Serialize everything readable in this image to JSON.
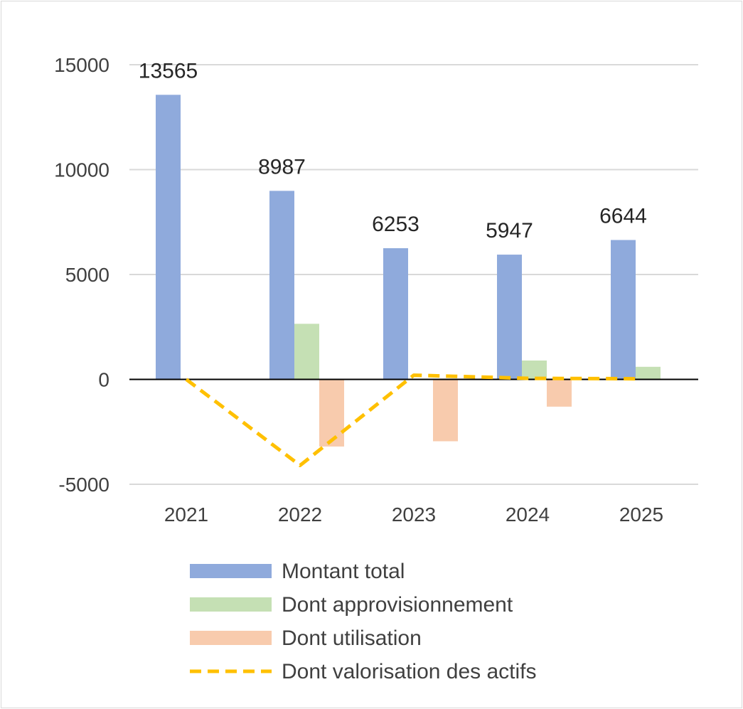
{
  "chart_data": {
    "type": "bar",
    "title": "",
    "xlabel": "",
    "ylabel": "",
    "categories": [
      "2021",
      "2022",
      "2023",
      "2024",
      "2025"
    ],
    "ylim": [
      -5000,
      15000
    ],
    "yticks": [
      15000,
      10000,
      5000,
      0,
      -5000
    ],
    "y_tick_labels": [
      "15000",
      "10000",
      "5000",
      "0",
      "-5000"
    ],
    "gridlines": true,
    "legend_position": "bottom",
    "series": [
      {
        "name": "Montant total",
        "type": "bar",
        "color": "#8faadc",
        "values": [
          13565,
          8987,
          6253,
          5947,
          6644
        ],
        "data_labels": [
          "13565",
          "8987",
          "6253",
          "5947",
          "6644"
        ]
      },
      {
        "name": "Dont approvisionnement",
        "type": "bar",
        "color": "#c5e0b4",
        "values": [
          0,
          2650,
          0,
          900,
          600
        ]
      },
      {
        "name": "Dont utilisation",
        "type": "bar",
        "color": "#f8cbad",
        "values": [
          0,
          -3200,
          -2950,
          -1300,
          0
        ]
      },
      {
        "name": "Dont valorisation des actifs",
        "type": "line",
        "style": "dashed",
        "color": "#ffc000",
        "values": [
          0,
          -4100,
          200,
          50,
          30
        ]
      }
    ]
  }
}
